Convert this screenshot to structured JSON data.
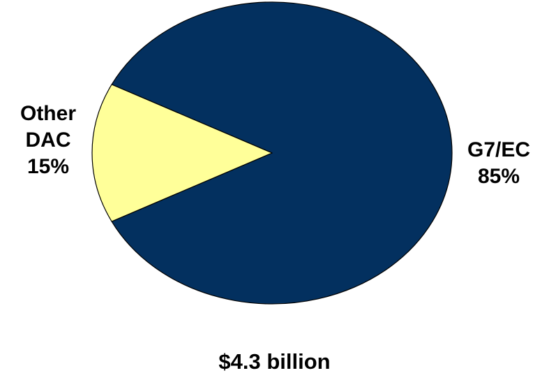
{
  "chart_data": {
    "type": "pie",
    "slices": [
      {
        "name": "G7/EC",
        "value": 85,
        "percent_label": "85%",
        "color": "#03305f"
      },
      {
        "name": "Other DAC",
        "value": 15,
        "percent_label": "15%",
        "color": "#ffff99"
      }
    ],
    "total_label": "$4.3 billion"
  },
  "labels": {
    "other_line1": "Other",
    "other_line2": "DAC",
    "other_pct": "15%",
    "g7_line1": "G7/EC",
    "g7_pct": "85%"
  }
}
